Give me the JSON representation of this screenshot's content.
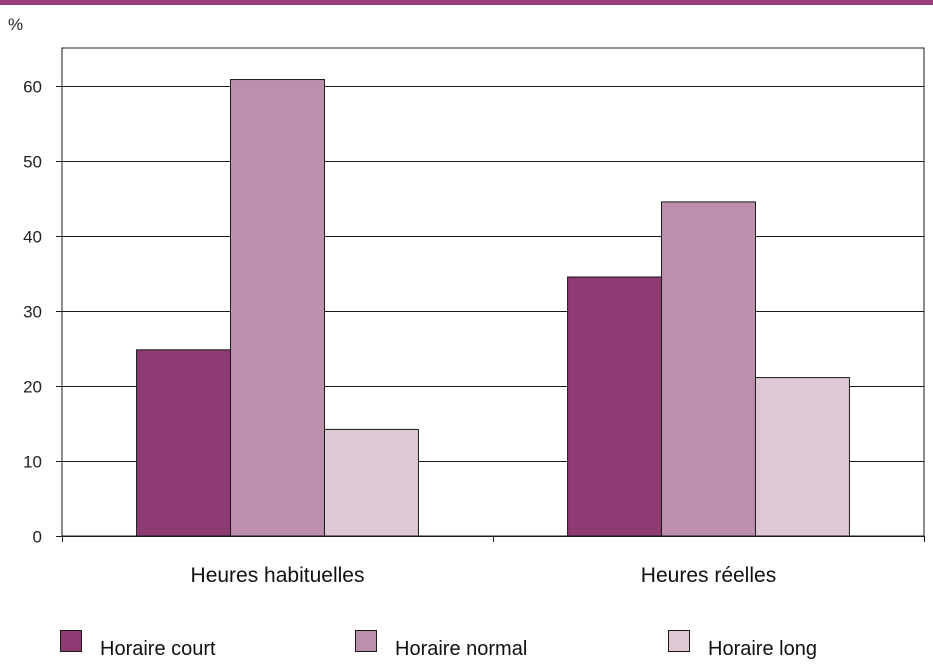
{
  "chart_data": {
    "type": "bar",
    "y_unit": "%",
    "categories": [
      "Heures habituelles",
      "Heures réelles"
    ],
    "series": [
      {
        "name": "Horaire court",
        "values": [
          24.8,
          34.5
        ],
        "color": "#8e3a73"
      },
      {
        "name": "Horaire normal",
        "values": [
          60.8,
          44.5
        ],
        "color": "#bc90ac"
      },
      {
        "name": "Horaire long",
        "values": [
          14.2,
          21.1
        ],
        "color": "#dfc8d5"
      }
    ],
    "ylim": [
      0,
      65
    ],
    "yticks": [
      0,
      10,
      20,
      30,
      40,
      50,
      60
    ],
    "grid": true,
    "legend_position": "bottom",
    "header_bar_color": "#9a3e7c"
  }
}
